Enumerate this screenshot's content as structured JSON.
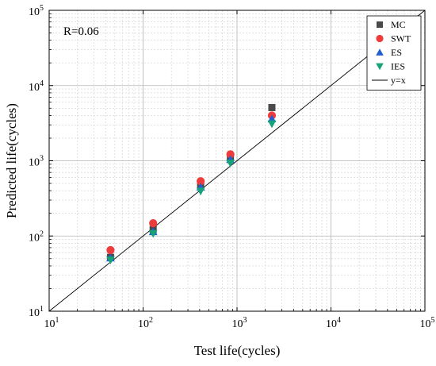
{
  "chart_data": {
    "type": "scatter",
    "xlabel": "Test life(cycles)",
    "ylabel": "Predicted life(cycles)",
    "x_scale": "log",
    "y_scale": "log",
    "xlim": [
      10,
      100000
    ],
    "ylim": [
      10,
      100000
    ],
    "x_ticks": [
      10,
      100,
      1000,
      10000,
      100000
    ],
    "y_ticks": [
      10,
      100,
      1000,
      10000,
      100000
    ],
    "tick_base": "10",
    "tick_exponents": [
      "1",
      "2",
      "3",
      "4",
      "5"
    ],
    "annotation": "R=0.06",
    "grid": true,
    "legend_position": "top-right",
    "series": [
      {
        "name": "MC",
        "marker": "square",
        "color": "#4a4a4a",
        "x": [
          45,
          128,
          410,
          850,
          2350
        ],
        "y": [
          52,
          122,
          455,
          1110,
          5100
        ]
      },
      {
        "name": "SWT",
        "marker": "circle",
        "color": "#ee3b3b",
        "x": [
          45,
          128,
          410,
          850,
          2350
        ],
        "y": [
          65,
          148,
          535,
          1220,
          4000
        ]
      },
      {
        "name": "ES",
        "marker": "triangle-up",
        "color": "#1f5fd1",
        "x": [
          45,
          128,
          410,
          850,
          2350
        ],
        "y": [
          51,
          114,
          445,
          1040,
          3600
        ]
      },
      {
        "name": "IES",
        "marker": "triangle-down",
        "color": "#17a27a",
        "x": [
          45,
          128,
          410,
          850,
          2350
        ],
        "y": [
          48,
          108,
          395,
          930,
          3100
        ]
      }
    ],
    "reference_line": {
      "name": "y=x",
      "color": "#000000"
    }
  }
}
